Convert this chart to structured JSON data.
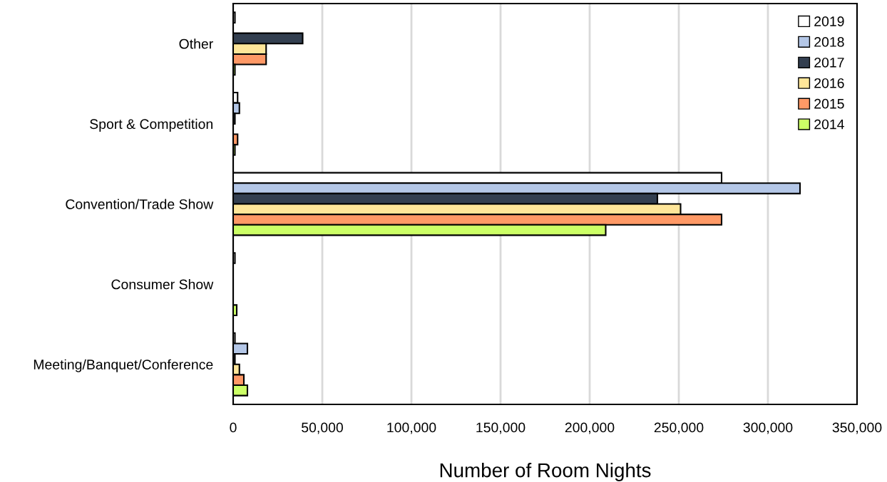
{
  "chart_data": {
    "type": "bar",
    "orientation": "horizontal",
    "xlabel": "Number of Room Nights",
    "categories": [
      "Other",
      "Sport & Competition",
      "Convention/Trade Show",
      "Consumer Show",
      "Meeting/Banquet/Conference"
    ],
    "series": [
      {
        "name": "2019",
        "color": "#ffffff",
        "values": [
          1000,
          2500,
          274000,
          1000,
          1000
        ]
      },
      {
        "name": "2018",
        "color": "#b4c7e7",
        "values": [
          null,
          3500,
          318000,
          null,
          8000
        ]
      },
      {
        "name": "2017",
        "color": "#333f50",
        "values": [
          39000,
          1000,
          238000,
          null,
          1000
        ]
      },
      {
        "name": "2016",
        "color": "#ffe699",
        "values": [
          18500,
          null,
          251000,
          null,
          3500
        ]
      },
      {
        "name": "2015",
        "color": "#ff9966",
        "values": [
          18500,
          2500,
          274000,
          null,
          6000
        ]
      },
      {
        "name": "2014",
        "color": "#ccff66",
        "values": [
          1000,
          1000,
          209000,
          2000,
          8000
        ]
      }
    ],
    "xlim": [
      0,
      350000
    ],
    "xticks": [
      {
        "value": 0,
        "label": "0"
      },
      {
        "value": 50000,
        "label": "50,000"
      },
      {
        "value": 100000,
        "label": "100,000"
      },
      {
        "value": 150000,
        "label": "150,000"
      },
      {
        "value": 200000,
        "label": "200,000"
      },
      {
        "value": 250000,
        "label": "250,000"
      },
      {
        "value": 300000,
        "label": "300,000"
      },
      {
        "value": 350000,
        "label": "350,000"
      }
    ],
    "grid": "x",
    "legend": "top right"
  }
}
